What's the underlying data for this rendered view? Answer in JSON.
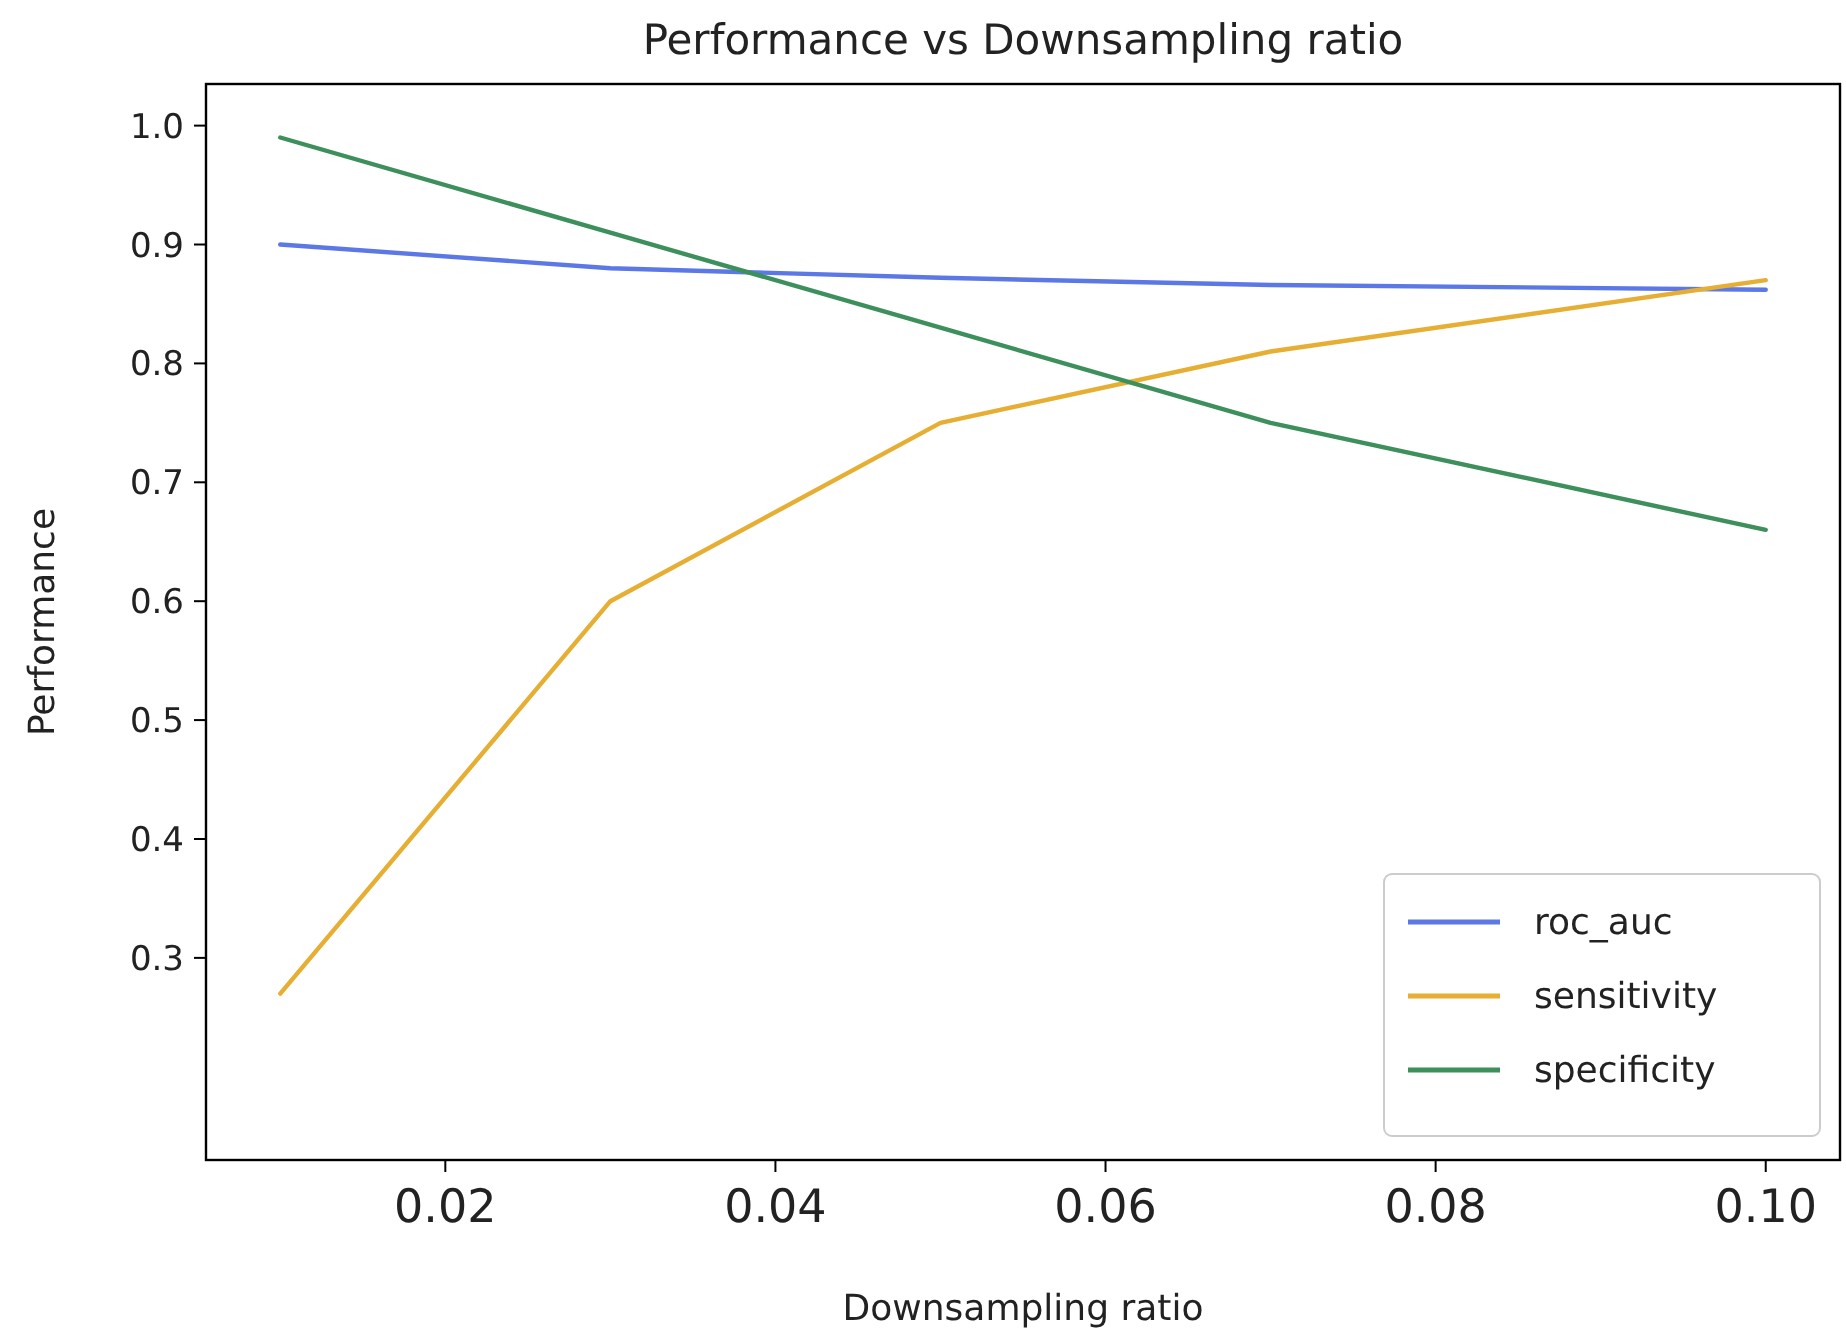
{
  "chart_data": {
    "type": "line",
    "title": "Performance vs Downsampling ratio",
    "xlabel": "Downsampling ratio",
    "ylabel": "Performance",
    "x": [
      0.01,
      0.03,
      0.05,
      0.07,
      0.1
    ],
    "series": [
      {
        "name": "roc_auc",
        "color": "#5b78e6",
        "values": [
          0.9,
          0.88,
          0.872,
          0.866,
          0.862
        ]
      },
      {
        "name": "sensitivity",
        "color": "#e6ae33",
        "values": [
          0.27,
          0.6,
          0.75,
          0.81,
          0.87
        ]
      },
      {
        "name": "specificity",
        "color": "#3d8f5c",
        "values": [
          0.99,
          0.91,
          0.83,
          0.75,
          0.66
        ]
      }
    ],
    "xlim": [
      0.0055,
      0.1045
    ],
    "xticks": [
      {
        "value": 0.02,
        "label": "0.02"
      },
      {
        "value": 0.04,
        "label": "0.04"
      },
      {
        "value": 0.06,
        "label": "0.06"
      },
      {
        "value": 0.08,
        "label": "0.08"
      },
      {
        "value": 0.1,
        "label": "0.10"
      }
    ],
    "ylim": [
      0.13,
      1.035
    ],
    "yticks": [
      {
        "value": 0.3,
        "label": "0.3"
      },
      {
        "value": 0.4,
        "label": "0.4"
      },
      {
        "value": 0.5,
        "label": "0.5"
      },
      {
        "value": 0.6,
        "label": "0.6"
      },
      {
        "value": 0.7,
        "label": "0.7"
      },
      {
        "value": 0.8,
        "label": "0.8"
      },
      {
        "value": 0.9,
        "label": "0.9"
      },
      {
        "value": 1.0,
        "label": "1.0"
      }
    ],
    "grid": false,
    "legend": "bottom right",
    "marker": "none",
    "line_style": "solid"
  }
}
